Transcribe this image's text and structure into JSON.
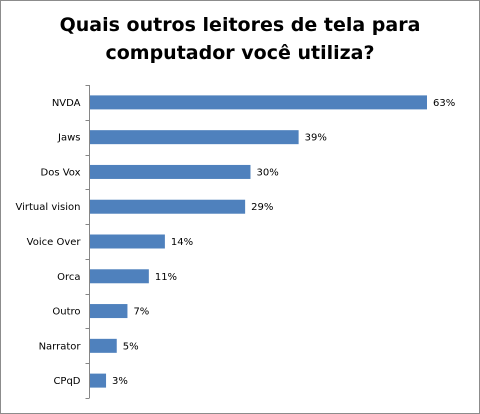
{
  "chart_data": {
    "type": "bar",
    "orientation": "horizontal",
    "title_lines": [
      "Quais outros leitores de tela para",
      "computador você utiliza?"
    ],
    "categories": [
      "NVDA",
      "Jaws",
      "Dos Vox",
      "Virtual vision",
      "Voice Over",
      "Orca",
      "Outro",
      "Narrator",
      "CPqD"
    ],
    "values": [
      63,
      39,
      30,
      29,
      14,
      11,
      7,
      5,
      3
    ],
    "value_labels": [
      "63%",
      "39%",
      "30%",
      "29%",
      "14%",
      "11%",
      "7%",
      "5%",
      "3%"
    ],
    "value_unit": "%",
    "xlim": [
      0,
      63
    ],
    "grid": false,
    "legend": "none",
    "bar_color": "#4f81bd"
  }
}
